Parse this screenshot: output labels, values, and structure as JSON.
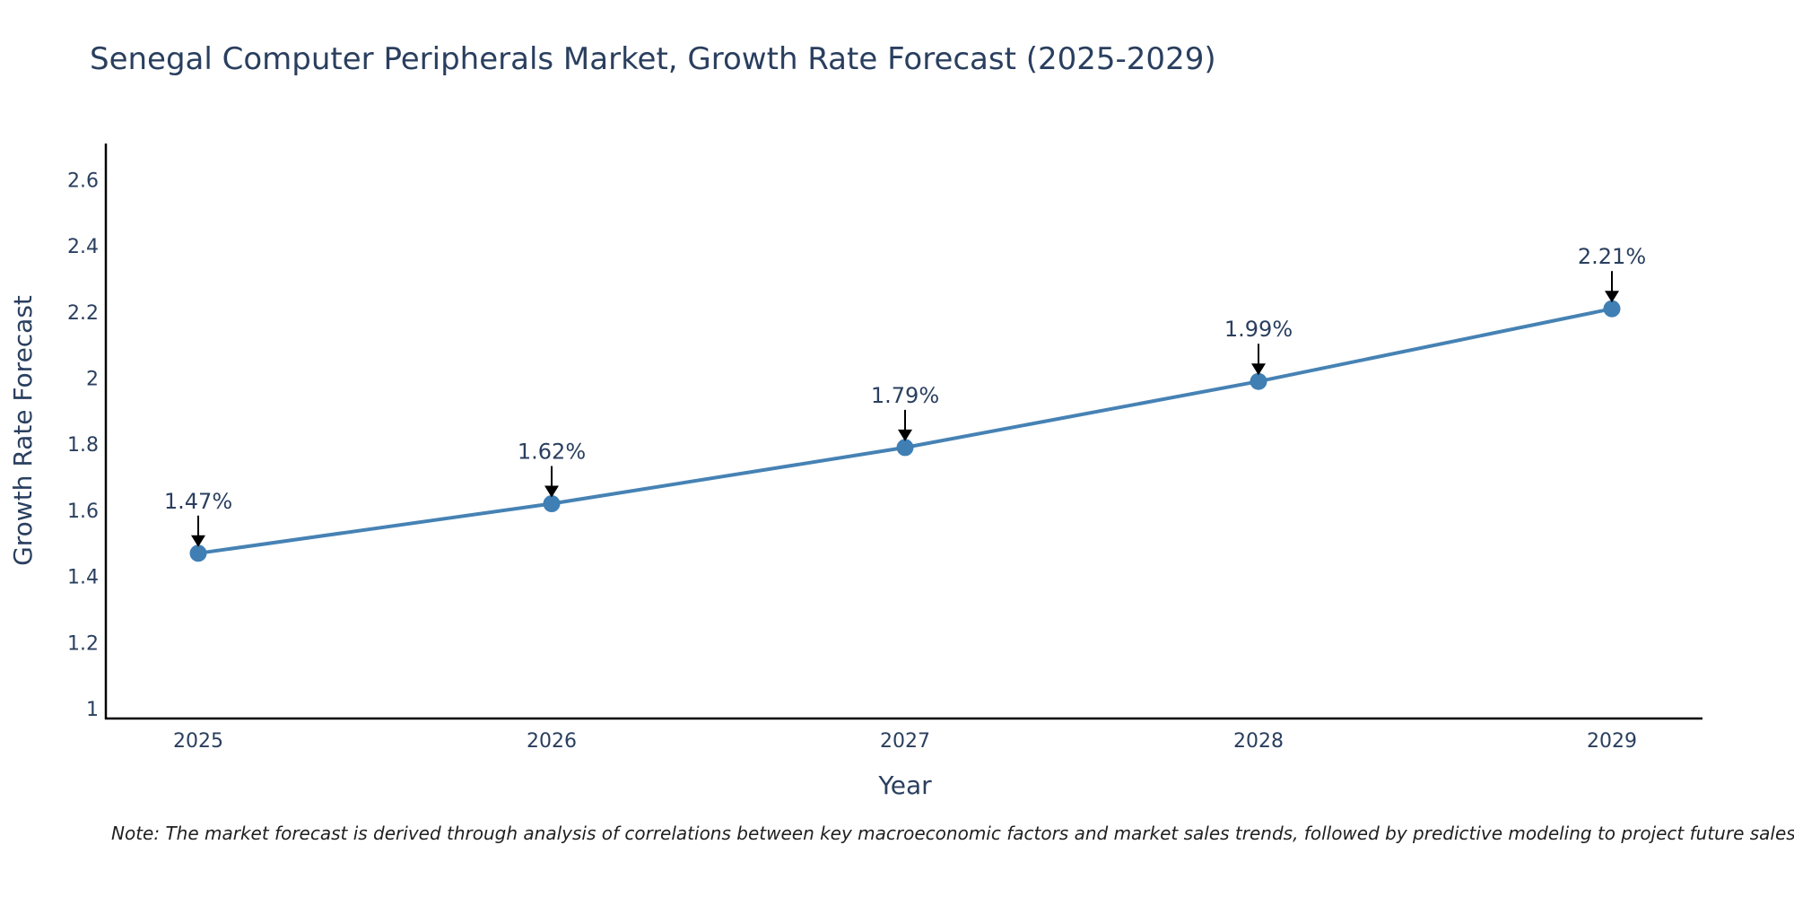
{
  "chart_data": {
    "type": "line",
    "title": "Senegal Computer Peripherals Market, Growth Rate Forecast (2025-2029)",
    "xlabel": "Year",
    "ylabel": "Growth Rate Forecast",
    "categories": [
      "2025",
      "2026",
      "2027",
      "2028",
      "2029"
    ],
    "series": [
      {
        "name": "Growth Rate Forecast",
        "values": [
          1.47,
          1.62,
          1.79,
          1.99,
          2.21
        ]
      }
    ],
    "data_labels": [
      "1.47%",
      "1.62%",
      "1.79%",
      "1.99%",
      "2.21%"
    ],
    "yticks": [
      1,
      1.2,
      1.4,
      1.6,
      1.8,
      2,
      2.2,
      2.4,
      2.6
    ],
    "ytick_labels": [
      "1",
      "1.2",
      "1.4",
      "1.6",
      "1.8",
      "2",
      "2.2",
      "2.4",
      "2.6"
    ],
    "ylim": [
      0.97,
      2.71
    ],
    "grid": false,
    "line_color": "#4682b4",
    "marker_color": "#3f7fb4",
    "arrow_color": "#000000"
  },
  "note": "Note: The market forecast is derived through analysis of correlations between key macroeconomic factors and market sales trends, followed by predictive modeling to project future sales."
}
